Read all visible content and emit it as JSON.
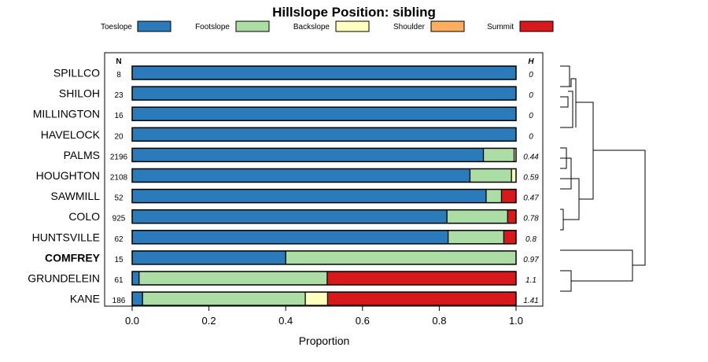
{
  "chart_data": {
    "type": "bar",
    "orientation": "horizontal",
    "stacked": true,
    "title": "Hillslope Position: sibling",
    "xlabel": "Proportion",
    "xlim": [
      0,
      1
    ],
    "xticks": [
      "0.0",
      "0.2",
      "0.4",
      "0.6",
      "0.8",
      "1.0"
    ],
    "n_header": "N",
    "h_header": "H",
    "legend": [
      {
        "name": "Toeslope",
        "color": "#2b7bba"
      },
      {
        "name": "Footslope",
        "color": "#abdda4"
      },
      {
        "name": "Backslope",
        "color": "#ffffbf"
      },
      {
        "name": "Shoulder",
        "color": "#fdae61"
      },
      {
        "name": "Summit",
        "color": "#d7191c"
      }
    ],
    "rows": [
      {
        "name": "SPILLCO",
        "n": "8",
        "h": "0",
        "bold": false,
        "values": [
          1.0,
          0,
          0,
          0,
          0
        ]
      },
      {
        "name": "SHILOH",
        "n": "23",
        "h": "0",
        "bold": false,
        "values": [
          1.0,
          0,
          0,
          0,
          0
        ]
      },
      {
        "name": "MILLINGTON",
        "n": "16",
        "h": "0",
        "bold": false,
        "values": [
          1.0,
          0,
          0,
          0,
          0
        ]
      },
      {
        "name": "HAVELOCK",
        "n": "20",
        "h": "0",
        "bold": false,
        "values": [
          1.0,
          0,
          0,
          0,
          0
        ]
      },
      {
        "name": "PALMS",
        "n": "2196",
        "h": "0.44",
        "bold": false,
        "values": [
          0.915,
          0.08,
          0.005,
          0,
          0
        ]
      },
      {
        "name": "HOUGHTON",
        "n": "2108",
        "h": "0.59",
        "bold": false,
        "values": [
          0.88,
          0.108,
          0.012,
          0,
          0
        ]
      },
      {
        "name": "SAWMILL",
        "n": "52",
        "h": "0.47",
        "bold": false,
        "values": [
          0.922,
          0.04,
          0,
          0,
          0.038
        ]
      },
      {
        "name": "COLO",
        "n": "925",
        "h": "0.78",
        "bold": false,
        "values": [
          0.82,
          0.158,
          0,
          0,
          0.022
        ]
      },
      {
        "name": "HUNTSVILLE",
        "n": "62",
        "h": "0.8",
        "bold": false,
        "values": [
          0.823,
          0.145,
          0,
          0,
          0.032
        ]
      },
      {
        "name": "COMFREY",
        "n": "15",
        "h": "0.97",
        "bold": true,
        "values": [
          0.4,
          0.6,
          0,
          0,
          0
        ]
      },
      {
        "name": "GRUNDELEIN",
        "n": "61",
        "h": "1.1",
        "bold": false,
        "values": [
          0.018,
          0.49,
          0,
          0,
          0.492
        ]
      },
      {
        "name": "KANE",
        "n": "186",
        "h": "1.41",
        "bold": false,
        "values": [
          0.027,
          0.424,
          0.058,
          0,
          0.491
        ]
      }
    ]
  }
}
